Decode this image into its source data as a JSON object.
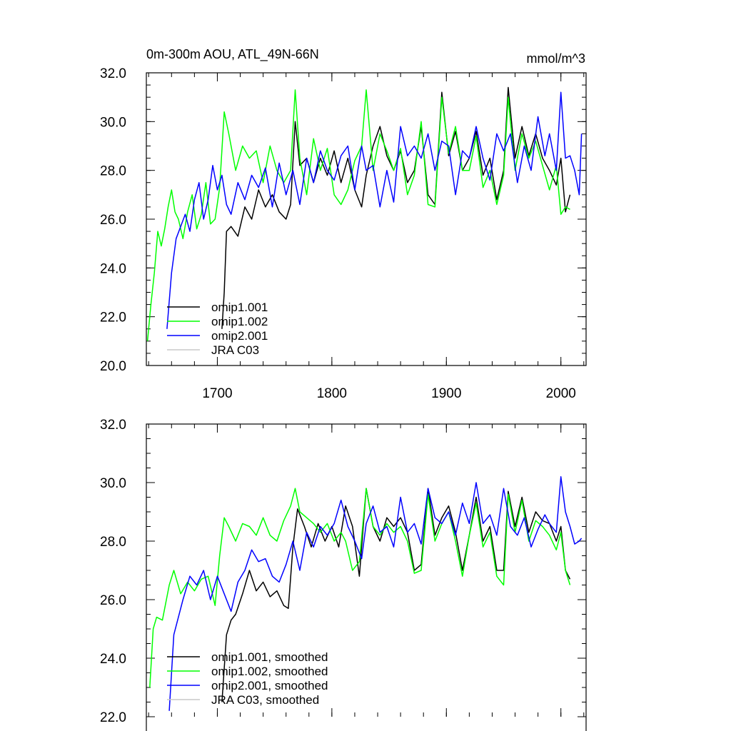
{
  "chart_data": [
    {
      "type": "line",
      "title": "0m-300m AOU, ATL_49N-66N",
      "units": "mmol/m^3",
      "xlim": [
        1638,
        2022
      ],
      "ylim": [
        20.0,
        32.0
      ],
      "xticks": [
        1700,
        1800,
        1900,
        2000
      ],
      "xtick_labels": [
        "1700",
        "1800",
        "1900",
        "2000"
      ],
      "yticks": [
        20.0,
        22.0,
        24.0,
        26.0,
        28.0,
        30.0,
        32.0
      ],
      "ytick_labels": [
        "20.0",
        "22.0",
        "24.0",
        "26.0",
        "28.0",
        "30.0",
        "32.0"
      ],
      "legend_position": "bottom-left",
      "series": [
        {
          "name": "omip1.001",
          "color": "#000000",
          "x": [
            1704,
            1706,
            1708,
            1712,
            1718,
            1724,
            1730,
            1736,
            1742,
            1748,
            1754,
            1760,
            1764,
            1768,
            1772,
            1778,
            1784,
            1790,
            1796,
            1802,
            1808,
            1814,
            1820,
            1826,
            1830,
            1836,
            1842,
            1848,
            1854,
            1860,
            1866,
            1872,
            1878,
            1884,
            1890,
            1896,
            1902,
            1908,
            1914,
            1920,
            1926,
            1932,
            1938,
            1944,
            1950,
            1954,
            1960,
            1966,
            1972,
            1978,
            1984,
            1990,
            1996,
            2000,
            2004,
            2008
          ],
          "y": [
            21.5,
            23.0,
            25.5,
            25.7,
            25.3,
            26.5,
            26.0,
            27.2,
            26.5,
            27.0,
            26.3,
            26.0,
            26.6,
            30.0,
            28.2,
            28.5,
            27.5,
            28.5,
            27.8,
            28.8,
            27.5,
            28.5,
            27.2,
            26.5,
            27.8,
            29.0,
            29.8,
            28.6,
            28.0,
            28.8,
            27.5,
            28.0,
            29.8,
            27.0,
            26.6,
            31.2,
            28.6,
            29.6,
            28.0,
            28.5,
            29.6,
            27.8,
            28.5,
            26.8,
            28.0,
            31.4,
            28.5,
            29.8,
            28.6,
            29.5,
            28.5,
            28.0,
            27.4,
            28.5,
            26.3,
            27.0
          ]
        },
        {
          "name": "omip1.002",
          "color": "#00ff00",
          "x": [
            1639,
            1642,
            1645,
            1648,
            1651,
            1654,
            1657,
            1660,
            1663,
            1666,
            1670,
            1674,
            1678,
            1682,
            1686,
            1690,
            1694,
            1698,
            1702,
            1706,
            1710,
            1716,
            1722,
            1728,
            1734,
            1740,
            1746,
            1752,
            1758,
            1764,
            1768,
            1772,
            1778,
            1784,
            1790,
            1796,
            1802,
            1808,
            1814,
            1820,
            1826,
            1830,
            1836,
            1842,
            1848,
            1854,
            1860,
            1866,
            1872,
            1878,
            1884,
            1890,
            1896,
            1902,
            1908,
            1914,
            1920,
            1926,
            1932,
            1938,
            1944,
            1950,
            1954,
            1960,
            1966,
            1972,
            1978,
            1984,
            1990,
            1996,
            2000,
            2004,
            2008
          ],
          "y": [
            21.0,
            22.5,
            23.8,
            25.5,
            24.9,
            25.6,
            26.5,
            27.2,
            26.3,
            26.0,
            25.2,
            26.3,
            27.0,
            25.6,
            26.2,
            27.5,
            25.8,
            26.0,
            27.3,
            30.4,
            29.5,
            28.0,
            29.0,
            28.5,
            28.8,
            27.5,
            29.0,
            28.0,
            27.5,
            28.0,
            31.3,
            28.5,
            27.0,
            29.3,
            28.0,
            28.9,
            27.0,
            26.6,
            27.2,
            28.4,
            29.0,
            31.3,
            28.0,
            29.5,
            28.8,
            28.0,
            28.9,
            27.0,
            27.8,
            30.0,
            26.6,
            26.5,
            31.0,
            28.7,
            29.8,
            28.0,
            28.0,
            29.4,
            27.3,
            28.0,
            26.6,
            27.8,
            31.0,
            28.0,
            29.5,
            28.5,
            29.2,
            28.2,
            27.2,
            28.2,
            26.2,
            26.5,
            26.4
          ]
        },
        {
          "name": "omip2.001",
          "color": "#0000ff",
          "x": [
            1656,
            1660,
            1664,
            1668,
            1672,
            1676,
            1680,
            1684,
            1688,
            1692,
            1696,
            1700,
            1704,
            1708,
            1712,
            1718,
            1724,
            1730,
            1736,
            1742,
            1748,
            1754,
            1760,
            1766,
            1772,
            1778,
            1784,
            1790,
            1796,
            1802,
            1808,
            1814,
            1820,
            1826,
            1830,
            1836,
            1842,
            1848,
            1854,
            1860,
            1866,
            1872,
            1878,
            1884,
            1890,
            1896,
            1902,
            1908,
            1914,
            1920,
            1926,
            1932,
            1938,
            1944,
            1950,
            1956,
            1962,
            1968,
            1974,
            1980,
            1986,
            1990,
            1996,
            2000,
            2004,
            2008,
            2012,
            2016,
            2018
          ],
          "y": [
            21.5,
            23.8,
            25.2,
            25.7,
            26.2,
            25.5,
            26.8,
            27.5,
            26.0,
            26.8,
            28.2,
            27.2,
            27.8,
            26.6,
            26.2,
            27.5,
            26.8,
            27.8,
            27.3,
            28.1,
            26.5,
            28.3,
            27.0,
            28.0,
            26.6,
            28.5,
            27.5,
            28.8,
            28.0,
            27.6,
            28.6,
            29.0,
            27.2,
            29.0,
            28.0,
            28.2,
            26.5,
            28.0,
            26.7,
            29.8,
            28.6,
            29.0,
            28.5,
            29.5,
            28.0,
            29.2,
            29.0,
            27.0,
            28.8,
            28.5,
            29.8,
            28.5,
            27.6,
            29.5,
            28.8,
            29.5,
            27.5,
            29.0,
            28.0,
            30.2,
            28.6,
            29.5,
            28.0,
            31.2,
            28.5,
            28.6,
            28.0,
            27.0,
            29.5
          ]
        },
        {
          "name": "JRA C03",
          "color": "#c8c8c8",
          "x": [],
          "y": []
        }
      ]
    },
    {
      "type": "line",
      "title": "",
      "xlim": [
        1638,
        2022
      ],
      "ylim": [
        22.0,
        32.0
      ],
      "yticks": [
        22.0,
        24.0,
        26.0,
        28.0,
        30.0,
        32.0
      ],
      "ytick_labels": [
        "22.0",
        "24.0",
        "26.0",
        "28.0",
        "30.0",
        "32.0"
      ],
      "legend_position": "bottom-left",
      "series": [
        {
          "name": "omip1.001, smoothed",
          "color": "#000000",
          "x": [
            1704,
            1708,
            1712,
            1716,
            1722,
            1728,
            1734,
            1740,
            1746,
            1752,
            1758,
            1762,
            1766,
            1770,
            1776,
            1782,
            1788,
            1794,
            1800,
            1806,
            1812,
            1818,
            1824,
            1830,
            1836,
            1842,
            1848,
            1854,
            1860,
            1866,
            1872,
            1878,
            1884,
            1890,
            1896,
            1902,
            1908,
            1914,
            1920,
            1926,
            1932,
            1938,
            1944,
            1950,
            1954,
            1960,
            1966,
            1972,
            1978,
            1984,
            1990,
            1996,
            2000,
            2004,
            2008
          ],
          "y": [
            22.5,
            24.8,
            25.3,
            25.5,
            26.2,
            27.0,
            26.3,
            26.6,
            26.1,
            26.3,
            25.8,
            25.7,
            27.8,
            29.1,
            28.5,
            27.8,
            28.6,
            28.0,
            28.5,
            27.8,
            29.2,
            28.5,
            26.8,
            29.8,
            28.5,
            28.0,
            28.8,
            28.5,
            28.8,
            28.3,
            27.0,
            27.2,
            29.8,
            28.2,
            28.8,
            29.2,
            28.3,
            27.0,
            28.2,
            29.5,
            28.0,
            28.5,
            27.0,
            27.0,
            29.7,
            28.5,
            29.5,
            28.3,
            29.0,
            28.7,
            28.6,
            28.0,
            28.5,
            27.0,
            26.7
          ]
        },
        {
          "name": "omip1.002, smoothed",
          "color": "#00ff00",
          "x": [
            1641,
            1644,
            1647,
            1652,
            1658,
            1662,
            1668,
            1674,
            1680,
            1686,
            1692,
            1698,
            1702,
            1706,
            1710,
            1716,
            1722,
            1728,
            1734,
            1740,
            1746,
            1752,
            1758,
            1764,
            1768,
            1772,
            1778,
            1784,
            1790,
            1796,
            1802,
            1808,
            1812,
            1818,
            1824,
            1830,
            1836,
            1842,
            1848,
            1854,
            1860,
            1866,
            1872,
            1878,
            1884,
            1890,
            1896,
            1902,
            1908,
            1914,
            1920,
            1926,
            1932,
            1938,
            1944,
            1950,
            1954,
            1960,
            1966,
            1972,
            1978,
            1984,
            1990,
            1996,
            2000,
            2004,
            2008
          ],
          "y": [
            23.0,
            25.0,
            25.4,
            25.3,
            26.5,
            27.0,
            26.2,
            26.6,
            26.3,
            26.7,
            26.8,
            25.8,
            27.5,
            28.8,
            28.5,
            28.0,
            28.6,
            28.5,
            28.2,
            28.8,
            28.2,
            28.0,
            28.7,
            29.2,
            29.8,
            29.0,
            28.8,
            28.6,
            28.3,
            28.6,
            28.0,
            28.3,
            28.0,
            27.0,
            27.3,
            29.8,
            28.5,
            28.2,
            28.6,
            28.3,
            28.5,
            28.0,
            26.9,
            27.0,
            29.6,
            28.0,
            28.6,
            29.0,
            28.0,
            26.8,
            28.2,
            29.3,
            27.8,
            28.3,
            26.8,
            26.5,
            29.6,
            28.3,
            29.4,
            28.0,
            28.7,
            28.5,
            28.2,
            27.7,
            28.3,
            27.0,
            26.5
          ]
        },
        {
          "name": "omip2.001, smoothed",
          "color": "#0000ff",
          "x": [
            1658,
            1662,
            1666,
            1670,
            1676,
            1682,
            1688,
            1694,
            1700,
            1706,
            1712,
            1718,
            1724,
            1730,
            1736,
            1742,
            1748,
            1754,
            1760,
            1766,
            1772,
            1778,
            1784,
            1790,
            1796,
            1802,
            1808,
            1814,
            1820,
            1826,
            1830,
            1836,
            1842,
            1848,
            1854,
            1860,
            1866,
            1872,
            1878,
            1884,
            1890,
            1896,
            1902,
            1908,
            1914,
            1920,
            1926,
            1932,
            1938,
            1944,
            1950,
            1956,
            1962,
            1968,
            1974,
            1980,
            1986,
            1990,
            1996,
            2000,
            2004,
            2008,
            2012,
            2016,
            2018
          ],
          "y": [
            22.2,
            24.8,
            25.4,
            26.0,
            26.8,
            26.5,
            27.0,
            26.0,
            26.8,
            26.2,
            25.6,
            26.6,
            27.0,
            27.7,
            27.3,
            27.4,
            26.8,
            26.6,
            27.2,
            28.0,
            27.0,
            28.3,
            27.8,
            28.5,
            28.2,
            28.6,
            29.4,
            28.5,
            28.0,
            27.4,
            28.6,
            29.2,
            28.3,
            28.5,
            27.8,
            29.5,
            28.3,
            28.6,
            27.9,
            29.8,
            28.8,
            28.6,
            29.0,
            28.2,
            29.3,
            28.6,
            30.0,
            28.6,
            28.9,
            28.2,
            29.8,
            28.5,
            28.2,
            28.8,
            27.8,
            28.4,
            28.9,
            28.6,
            28.3,
            30.2,
            29.0,
            28.5,
            27.9,
            28.0,
            28.1
          ]
        },
        {
          "name": "JRA C03, smoothed",
          "color": "#c8c8c8",
          "x": [],
          "y": []
        }
      ]
    }
  ]
}
